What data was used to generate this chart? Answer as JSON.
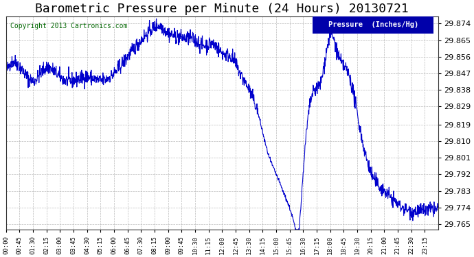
{
  "title": "Barometric Pressure per Minute (24 Hours) 20130721",
  "copyright": "Copyright 2013 Cartronics.com",
  "legend_label": "Pressure  (Inches/Hg)",
  "yticks": [
    29.765,
    29.774,
    29.783,
    29.792,
    29.801,
    29.81,
    29.819,
    29.829,
    29.838,
    29.847,
    29.856,
    29.865,
    29.874
  ],
  "ylim": [
    29.762,
    29.878
  ],
  "xtick_labels": [
    "00:00",
    "00:45",
    "01:30",
    "02:15",
    "03:00",
    "03:45",
    "04:30",
    "05:15",
    "06:00",
    "06:45",
    "07:30",
    "08:15",
    "09:00",
    "09:45",
    "10:30",
    "11:15",
    "12:00",
    "12:45",
    "13:30",
    "14:15",
    "15:00",
    "15:45",
    "16:30",
    "17:15",
    "18:00",
    "18:45",
    "19:30",
    "20:15",
    "21:00",
    "21:45",
    "22:30",
    "23:15"
  ],
  "line_color": "#0000cc",
  "grid_color": "#aaaaaa",
  "bg_color": "#ffffff",
  "title_fontsize": 13,
  "legend_bg": "#0000aa",
  "legend_fg": "#ffffff",
  "keypoints_x": [
    0,
    45,
    90,
    135,
    180,
    225,
    270,
    315,
    360,
    405,
    450,
    480,
    510,
    540,
    570,
    600,
    630,
    660,
    690,
    720,
    750,
    780,
    810,
    840,
    870,
    900,
    930,
    960,
    975,
    990,
    1020,
    1050,
    1080,
    1110,
    1140,
    1170,
    1200,
    1260,
    1320,
    1380,
    1439
  ],
  "keypoints_y": [
    29.847,
    29.851,
    29.843,
    29.85,
    29.845,
    29.843,
    29.845,
    29.843,
    29.847,
    29.856,
    29.865,
    29.87,
    29.873,
    29.869,
    29.867,
    29.866,
    29.865,
    29.862,
    29.863,
    29.858,
    29.856,
    29.847,
    29.838,
    29.825,
    29.805,
    29.792,
    29.78,
    29.765,
    29.762,
    29.793,
    29.835,
    29.843,
    29.867,
    29.855,
    29.847,
    29.825,
    29.801,
    29.783,
    29.774,
    29.772,
    29.773
  ],
  "noise_seed": 42,
  "noise_std": 0.002
}
